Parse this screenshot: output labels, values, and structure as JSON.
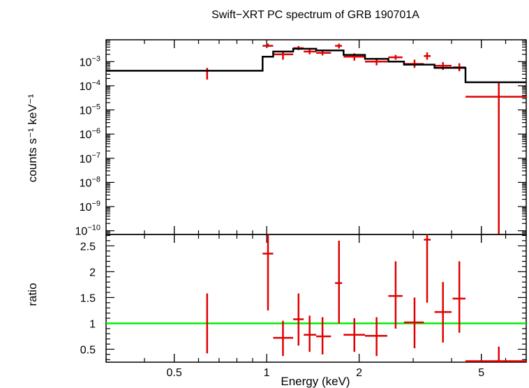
{
  "chart_data": {
    "type": "scatter",
    "title": "Swift−XRT PC spectrum of GRB 190701A",
    "xlabel": "Energy (keV)",
    "x_scale": "log",
    "xlim": [
      0.3,
      7.0
    ],
    "x_ticks": [
      {
        "value": 0.5,
        "label": "0.5"
      },
      {
        "value": 1,
        "label": "1"
      },
      {
        "value": 2,
        "label": "2"
      },
      {
        "value": 5,
        "label": "5"
      }
    ],
    "colors": {
      "data": "#e00000",
      "model": "#000000",
      "unity": "#00ee00"
    },
    "panels": [
      {
        "id": "spectrum",
        "ylabel": "counts s⁻¹ keV⁻¹",
        "y_scale": "log",
        "ylim": [
          7e-11,
          0.008
        ],
        "y_ticks": [
          {
            "value": 0.001,
            "base": "10",
            "exp": "−3"
          },
          {
            "value": 0.0001,
            "base": "10",
            "exp": "−4"
          },
          {
            "value": 1e-05,
            "base": "10",
            "exp": "−5"
          },
          {
            "value": 1e-06,
            "base": "10",
            "exp": "−6"
          },
          {
            "value": 1e-07,
            "base": "10",
            "exp": "−7"
          },
          {
            "value": 1e-08,
            "base": "10",
            "exp": "−8"
          },
          {
            "value": 1e-09,
            "base": "10",
            "exp": "−9"
          },
          {
            "value": 1e-10,
            "base": "10",
            "exp": "−10"
          }
        ],
        "series": [
          {
            "name": "data",
            "points": [
              {
                "x": 0.64,
                "xlo": 0.64,
                "xhi": 0.64,
                "y": 0.00032,
                "ylo": 0.00018,
                "yhi": 0.00055
              },
              {
                "x": 1.01,
                "xlo": 0.97,
                "xhi": 1.05,
                "y": 0.0045,
                "ylo": 0.004,
                "yhi": 0.0055
              },
              {
                "x": 1.13,
                "xlo": 1.05,
                "xhi": 1.22,
                "y": 0.002,
                "ylo": 0.0012,
                "yhi": 0.0027
              },
              {
                "x": 1.27,
                "xlo": 1.22,
                "xhi": 1.32,
                "y": 0.0036,
                "ylo": 0.003,
                "yhi": 0.0044
              },
              {
                "x": 1.38,
                "xlo": 1.32,
                "xhi": 1.45,
                "y": 0.0026,
                "ylo": 0.002,
                "yhi": 0.0036
              },
              {
                "x": 1.52,
                "xlo": 1.45,
                "xhi": 1.62,
                "y": 0.0023,
                "ylo": 0.0018,
                "yhi": 0.003
              },
              {
                "x": 1.72,
                "xlo": 1.67,
                "xhi": 1.76,
                "y": 0.0045,
                "ylo": 0.0035,
                "yhi": 0.0055
              },
              {
                "x": 1.93,
                "xlo": 1.78,
                "xhi": 2.09,
                "y": 0.0016,
                "ylo": 0.0011,
                "yhi": 0.0022
              },
              {
                "x": 2.28,
                "xlo": 2.09,
                "xhi": 2.47,
                "y": 0.001,
                "ylo": 0.0007,
                "yhi": 0.0014
              },
              {
                "x": 2.63,
                "xlo": 2.49,
                "xhi": 2.77,
                "y": 0.0015,
                "ylo": 0.0012,
                "yhi": 0.0019
              },
              {
                "x": 3.03,
                "xlo": 2.8,
                "xhi": 3.25,
                "y": 0.0008,
                "ylo": 0.00055,
                "yhi": 0.0012
              },
              {
                "x": 3.33,
                "xlo": 3.25,
                "xhi": 3.42,
                "y": 0.0017,
                "ylo": 0.0012,
                "yhi": 0.0024
              },
              {
                "x": 3.75,
                "xlo": 3.52,
                "xhi": 4.0,
                "y": 0.00067,
                "ylo": 0.00045,
                "yhi": 0.00095
              },
              {
                "x": 4.24,
                "xlo": 4.03,
                "xhi": 4.44,
                "y": 0.00058,
                "ylo": 0.0004,
                "yhi": 0.00085
              },
              {
                "x": 5.7,
                "xlo": 4.44,
                "xhi": 7.0,
                "y": 3.5e-05,
                "ylo": 7e-11,
                "yhi": 0.00013
              }
            ]
          },
          {
            "name": "model",
            "steps": [
              {
                "xlo": 0.3,
                "xhi": 0.97,
                "y": 0.00042
              },
              {
                "xlo": 0.97,
                "xhi": 1.05,
                "y": 0.0016
              },
              {
                "xlo": 1.05,
                "xhi": 1.22,
                "y": 0.0026
              },
              {
                "xlo": 1.22,
                "xhi": 1.45,
                "y": 0.0034
              },
              {
                "xlo": 1.45,
                "xhi": 1.78,
                "y": 0.0029
              },
              {
                "xlo": 1.78,
                "xhi": 2.09,
                "y": 0.0019
              },
              {
                "xlo": 2.09,
                "xhi": 2.49,
                "y": 0.0013
              },
              {
                "xlo": 2.49,
                "xhi": 2.8,
                "y": 0.001
              },
              {
                "xlo": 2.8,
                "xhi": 3.52,
                "y": 0.00075
              },
              {
                "xlo": 3.52,
                "xhi": 4.44,
                "y": 0.00055
              },
              {
                "xlo": 4.44,
                "xhi": 7.0,
                "y": 0.00014
              }
            ]
          }
        ]
      },
      {
        "id": "ratio",
        "ylabel": "ratio",
        "y_scale": "linear",
        "ylim": [
          0.25,
          2.72
        ],
        "y_ticks": [
          {
            "value": 0.5,
            "label": "0.5"
          },
          {
            "value": 1,
            "label": "1"
          },
          {
            "value": 1.5,
            "label": "1.5"
          },
          {
            "value": 2,
            "label": "2"
          },
          {
            "value": 2.5,
            "label": "2.5"
          }
        ],
        "reference_line": 1,
        "series": [
          {
            "name": "ratio",
            "points": [
              {
                "x": 0.64,
                "xlo": 0.64,
                "xhi": 0.64,
                "y": 1.0,
                "ylo": 0.42,
                "yhi": 1.58
              },
              {
                "x": 1.01,
                "xlo": 0.97,
                "xhi": 1.05,
                "y": 2.35,
                "ylo": 1.25,
                "yhi": 2.72
              },
              {
                "x": 1.13,
                "xlo": 1.05,
                "xhi": 1.22,
                "y": 0.72,
                "ylo": 0.37,
                "yhi": 1.05
              },
              {
                "x": 1.27,
                "xlo": 1.22,
                "xhi": 1.32,
                "y": 1.08,
                "ylo": 0.57,
                "yhi": 1.58
              },
              {
                "x": 1.38,
                "xlo": 1.32,
                "xhi": 1.45,
                "y": 0.78,
                "ylo": 0.45,
                "yhi": 1.15
              },
              {
                "x": 1.52,
                "xlo": 1.45,
                "xhi": 1.62,
                "y": 0.75,
                "ylo": 0.4,
                "yhi": 1.12
              },
              {
                "x": 1.72,
                "xlo": 1.67,
                "xhi": 1.76,
                "y": 1.78,
                "ylo": 1.0,
                "yhi": 2.6
              },
              {
                "x": 1.93,
                "xlo": 1.78,
                "xhi": 2.09,
                "y": 0.78,
                "ylo": 0.45,
                "yhi": 1.1
              },
              {
                "x": 2.28,
                "xlo": 2.09,
                "xhi": 2.47,
                "y": 0.76,
                "ylo": 0.37,
                "yhi": 1.12
              },
              {
                "x": 2.63,
                "xlo": 2.49,
                "xhi": 2.77,
                "y": 1.53,
                "ylo": 0.9,
                "yhi": 2.2
              },
              {
                "x": 3.03,
                "xlo": 2.8,
                "xhi": 3.25,
                "y": 1.02,
                "ylo": 0.52,
                "yhi": 1.5
              },
              {
                "x": 3.33,
                "xlo": 3.25,
                "xhi": 3.42,
                "y": 2.62,
                "ylo": 1.4,
                "yhi": 2.72
              },
              {
                "x": 3.75,
                "xlo": 3.52,
                "xhi": 4.0,
                "y": 1.22,
                "ylo": 0.63,
                "yhi": 1.8
              },
              {
                "x": 4.24,
                "xlo": 4.03,
                "xhi": 4.44,
                "y": 1.48,
                "ylo": 0.82,
                "yhi": 2.2
              },
              {
                "x": 5.7,
                "xlo": 4.44,
                "xhi": 7.0,
                "y": 0.27,
                "ylo": 0.25,
                "yhi": 0.55
              }
            ]
          }
        ]
      }
    ]
  }
}
